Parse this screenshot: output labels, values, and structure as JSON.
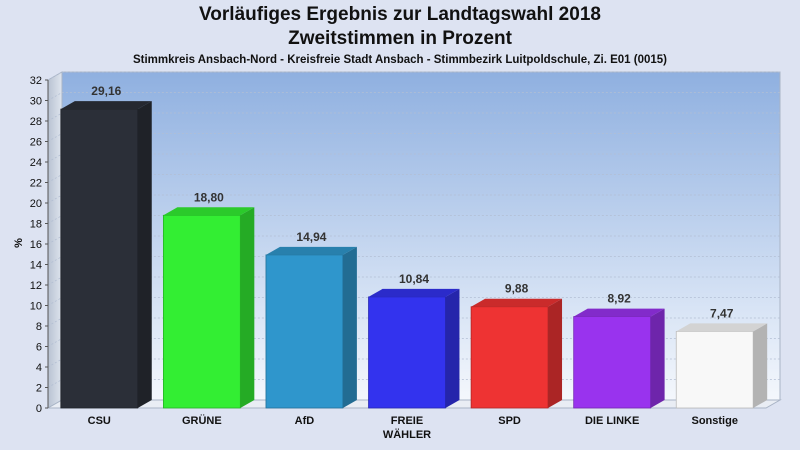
{
  "title": "Vorläufiges Ergebnis zur Landtagswahl 2018",
  "subtitle_line2": "Zweitstimmen in Prozent",
  "subtitle": "Stimmkreis Ansbach-Nord - Kreisfreie Stadt Ansbach - Stimmbezirk Luitpoldschule, Zi. E01 (0015)",
  "chart_data": {
    "type": "bar",
    "ylabel": "%",
    "ylim": [
      0,
      32
    ],
    "ytick_step": 2,
    "grid": true,
    "categories": [
      {
        "lines": [
          "CSU"
        ]
      },
      {
        "lines": [
          "GRÜNE"
        ]
      },
      {
        "lines": [
          "AfD"
        ]
      },
      {
        "lines": [
          "FREIE",
          "WÄHLER"
        ]
      },
      {
        "lines": [
          "SPD"
        ]
      },
      {
        "lines": [
          "DIE LINKE"
        ]
      },
      {
        "lines": [
          "Sonstige"
        ]
      }
    ],
    "values": [
      29.16,
      18.8,
      14.94,
      10.84,
      9.88,
      8.92,
      7.47
    ],
    "value_labels": [
      "29,16",
      "18,80",
      "14,94",
      "10,84",
      "9,88",
      "8,92",
      "7,47"
    ],
    "colors": [
      "#2b2f38",
      "#33ee33",
      "#2f96cc",
      "#3333ee",
      "#ee3333",
      "#9933ee",
      "#f8f8f8"
    ]
  }
}
